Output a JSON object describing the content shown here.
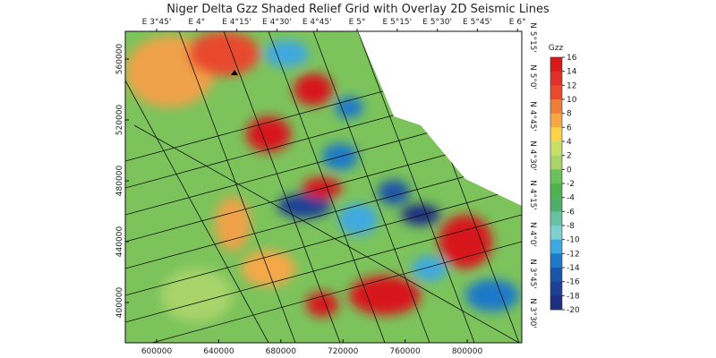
{
  "title": "Niger Delta Gzz Shaded Relief Grid with Overlay 2D Seismic Lines",
  "top_labels": [
    "E 3°45'",
    "E 4°",
    "E 4°15'",
    "E 4°30'",
    "E 4°45'",
    "E 5°",
    "E 5°15'",
    "E 5°30'",
    "E 5°45'",
    "E 6°"
  ],
  "right_labels": [
    "N 5°15'",
    "N 5°0'",
    "N 4°45'",
    "N 4°30'",
    "N 4°15'",
    "N 4°0'",
    "N 3°45'",
    "N 3°30'"
  ],
  "left_ticks": [
    560000,
    520000,
    480000,
    440000,
    400000
  ],
  "bottom_ticks": [
    600000,
    640000,
    680000,
    720000,
    760000,
    800000
  ],
  "colorbar": {
    "title": "Gzz",
    "ticks": [
      16,
      14,
      12,
      10,
      8,
      6,
      4,
      2,
      0,
      -2,
      -4,
      -6,
      -8,
      -10,
      -12,
      -14,
      -16,
      -18,
      -20
    ],
    "colors": [
      "#d7191c",
      "#e0302a",
      "#e84a2e",
      "#ef7d3a",
      "#f6a848",
      "#fbd44a",
      "#c8e06a",
      "#a8d46a",
      "#6cc25a",
      "#4db34f",
      "#4fae6a",
      "#66c2a0",
      "#7fd0d0",
      "#40a8e0",
      "#1e78c8",
      "#1a55a8",
      "#1d3f96",
      "#1e2e80"
    ]
  }
}
